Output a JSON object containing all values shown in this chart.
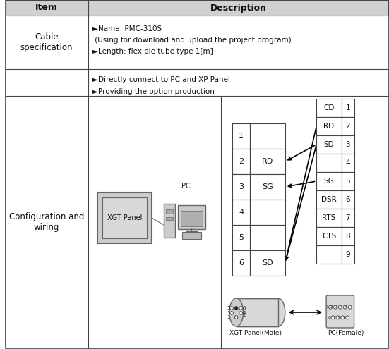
{
  "title_row": [
    "Item",
    "Description"
  ],
  "row1_col1": "Cable\nspecification",
  "row1_col2_lines": [
    "►Name: PMC-310S",
    " (Using for download and upload the project program)",
    "►Length: flexible tube type 1[m]"
  ],
  "row2_col2_lines": [
    "►Directly connect to PC and XP Panel",
    "►Providing the option production"
  ],
  "row3_col1": "Configuration and\nwiring",
  "left_box_label": "XGT Panel",
  "pc_label": "PC",
  "mini_din_rows": [
    "1",
    "2",
    "3",
    "4",
    "5",
    "6"
  ],
  "mini_din_signals": [
    "",
    "RD",
    "SG",
    "",
    "",
    "SD"
  ],
  "db9_rows": [
    "CD",
    "RD",
    "SD",
    "",
    "SG",
    "DSR",
    "RTS",
    "CTS",
    ""
  ],
  "db9_numbers": [
    "1",
    "2",
    "3",
    "4",
    "5",
    "6",
    "7",
    "8",
    "9"
  ],
  "xgt_panel_male_label": "XGT Panel(Male)",
  "pc_female_label": "PC(Female)",
  "bg_color": "#ffffff",
  "header_bg": "#d0d0d0",
  "border_color": "#444444",
  "text_color": "#111111"
}
